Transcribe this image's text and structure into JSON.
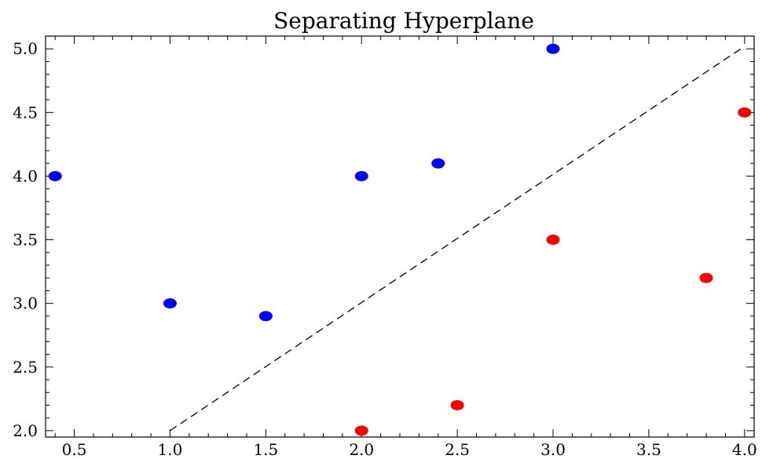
{
  "chart_data": {
    "type": "scatter",
    "title": "Separating Hyperplane",
    "xlabel": "",
    "ylabel": "",
    "xlim": [
      0.35,
      4.05
    ],
    "ylim": [
      1.95,
      5.1
    ],
    "x_ticks": [
      0.5,
      1.0,
      1.5,
      2.0,
      2.5,
      3.0,
      3.5,
      4.0
    ],
    "x_tick_labels": [
      "0.5",
      "1.0",
      "1.5",
      "2.0",
      "2.5",
      "3.0",
      "3.5",
      "4.0"
    ],
    "y_ticks": [
      2.0,
      2.5,
      3.0,
      3.5,
      4.0,
      4.5,
      5.0
    ],
    "y_tick_labels": [
      "2.0",
      "2.5",
      "3.0",
      "3.5",
      "4.0",
      "4.5",
      "5.0"
    ],
    "grid": false,
    "series": [
      {
        "color": "#0000ff",
        "points": [
          {
            "x": 0.4,
            "y": 4.0
          },
          {
            "x": 1.0,
            "y": 3.0
          },
          {
            "x": 1.5,
            "y": 2.9
          },
          {
            "x": 2.0,
            "y": 4.0
          },
          {
            "x": 2.4,
            "y": 4.1
          },
          {
            "x": 3.0,
            "y": 5.0
          }
        ]
      },
      {
        "color": "#ff0000",
        "points": [
          {
            "x": 2.0,
            "y": 2.0
          },
          {
            "x": 2.5,
            "y": 2.2
          },
          {
            "x": 3.0,
            "y": 3.5
          },
          {
            "x": 3.8,
            "y": 3.2
          },
          {
            "x": 4.0,
            "y": 4.5
          }
        ]
      }
    ],
    "separator_line": {
      "style": "dashed",
      "color": "#000000",
      "points": [
        {
          "x": 1.0,
          "y": 2.0
        },
        {
          "x": 4.0,
          "y": 5.02
        }
      ]
    }
  }
}
